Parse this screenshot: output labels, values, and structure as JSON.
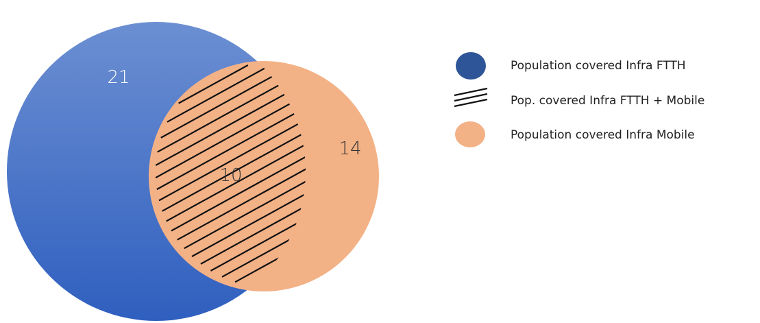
{
  "venn": {
    "left_only_value": "21",
    "overlap_value": "10",
    "right_only_value": "14"
  },
  "legend": {
    "items": [
      {
        "label": "Population covered Infra FTTH",
        "icon": "dark-blue-circle-icon"
      },
      {
        "label": "Pop. covered Infra FTTH + Mobile",
        "icon": "hatch-lines-icon"
      },
      {
        "label": "Population covered Infra Mobile",
        "icon": "peach-circle-icon"
      }
    ]
  },
  "colors": {
    "ftth_gradient_top": "#6c8fd2",
    "ftth_gradient_bottom": "#2f5fbf",
    "legend_ftth": "#2e5597",
    "mobile": "#f3b186",
    "hatch": "#111111",
    "number_left": "#ffffff",
    "number_inner": "#333333"
  }
}
